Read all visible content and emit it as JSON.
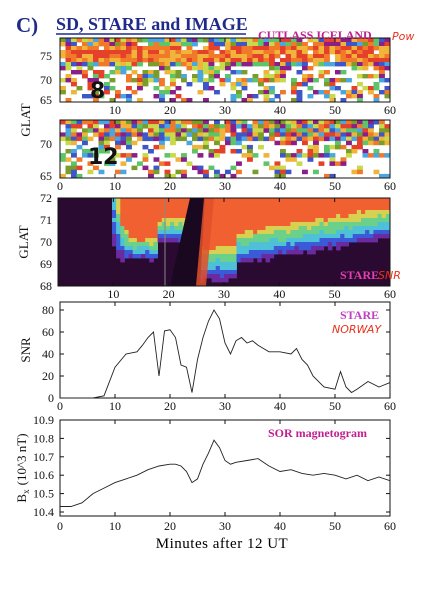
{
  "header": {
    "letter": "C)",
    "title": "SD, STARE and IMAGE"
  },
  "panels": {
    "cutlass_8": {
      "label": "CUTLASS ICELAND",
      "handwritten": "Pow",
      "beam_label": "8",
      "yticks": [
        "75",
        "70",
        "65"
      ],
      "xticks": [
        "10",
        "20",
        "30",
        "40",
        "50",
        "60"
      ]
    },
    "cutlass_12": {
      "beam_label": "12",
      "ylabel": "GLAT",
      "yticks": [
        "70",
        "65"
      ],
      "xticks": [
        "0",
        "10",
        "20",
        "30",
        "40",
        "50",
        "60"
      ]
    },
    "stare_map": {
      "ylabel": "GLAT",
      "label": "STARE",
      "handwritten": "SNR",
      "yticks": [
        "72",
        "71",
        "70",
        "69",
        "68"
      ],
      "xticks": [
        "10",
        "20",
        "30",
        "40",
        "50",
        "60"
      ]
    },
    "stare_snr": {
      "label": "STARE",
      "handwritten": "NORWAY",
      "ylabel": "SNR",
      "yticks": [
        "80",
        "60",
        "40",
        "20",
        "0"
      ],
      "xticks": [
        "0",
        "10",
        "20",
        "30",
        "40",
        "50",
        "60"
      ]
    },
    "sor_mag": {
      "label": "SOR magnetogram",
      "ylabel": "B",
      "ylabel_sub": "x",
      "ylabel_unit": "(10^3 nT)",
      "yticks": [
        "10.9",
        "10.8",
        "10.7",
        "10.6",
        "10.5",
        "10.4"
      ],
      "xticks": [
        "0",
        "10",
        "20",
        "30",
        "40",
        "50",
        "60"
      ]
    }
  },
  "xtitle": "Minutes after 12 UT",
  "colors": {
    "title": "#1f2a8a",
    "panel_label": "#c0208f",
    "handwriting": "#e8301c"
  },
  "chart_data": [
    {
      "type": "line",
      "name": "STARE NORWAY",
      "x": [
        0,
        2,
        4,
        6,
        8,
        10,
        12,
        14,
        15,
        16,
        17,
        18,
        19,
        20,
        21,
        22,
        23,
        24,
        25,
        26,
        27,
        28,
        29,
        30,
        31,
        32,
        33,
        34,
        35,
        36,
        37,
        38,
        40,
        42,
        43,
        44,
        45,
        46,
        48,
        50,
        51,
        52,
        53,
        54,
        56,
        58,
        60
      ],
      "values": [
        0,
        0,
        0,
        0,
        2,
        28,
        40,
        42,
        48,
        55,
        60,
        20,
        61,
        62,
        55,
        30,
        28,
        5,
        35,
        55,
        70,
        80,
        72,
        50,
        40,
        52,
        55,
        50,
        52,
        48,
        45,
        42,
        42,
        40,
        45,
        35,
        30,
        20,
        10,
        8,
        24,
        10,
        5,
        8,
        15,
        10,
        14
      ],
      "xlim": [
        0,
        60
      ],
      "ylim": [
        0,
        80
      ]
    },
    {
      "type": "line",
      "name": "SOR magnetogram",
      "x": [
        0,
        2,
        4,
        6,
        8,
        10,
        12,
        14,
        16,
        18,
        20,
        21,
        22,
        23,
        24,
        25,
        26,
        27,
        28,
        29,
        30,
        31,
        32,
        34,
        36,
        38,
        40,
        42,
        44,
        46,
        48,
        50,
        52,
        54,
        56,
        58,
        60
      ],
      "values": [
        10.43,
        10.43,
        10.45,
        10.5,
        10.53,
        10.56,
        10.58,
        10.6,
        10.63,
        10.65,
        10.66,
        10.66,
        10.65,
        10.62,
        10.56,
        10.58,
        10.66,
        10.72,
        10.79,
        10.75,
        10.68,
        10.66,
        10.67,
        10.68,
        10.69,
        10.65,
        10.62,
        10.63,
        10.61,
        10.6,
        10.61,
        10.6,
        10.58,
        10.6,
        10.57,
        10.59,
        10.57
      ],
      "xlim": [
        0,
        60
      ],
      "ylim": [
        10.4,
        10.9
      ]
    },
    {
      "type": "heatmap",
      "name": "CUTLASS ICELAND beam 8",
      "xlim": [
        0,
        60
      ],
      "ylim": [
        65,
        78
      ]
    },
    {
      "type": "heatmap",
      "name": "CUTLASS ICELAND beam 12",
      "xlim": [
        0,
        60
      ],
      "ylim": [
        65,
        73
      ]
    },
    {
      "type": "heatmap",
      "name": "STARE SNR",
      "xlim": [
        0,
        60
      ],
      "ylim": [
        68,
        72
      ]
    }
  ]
}
